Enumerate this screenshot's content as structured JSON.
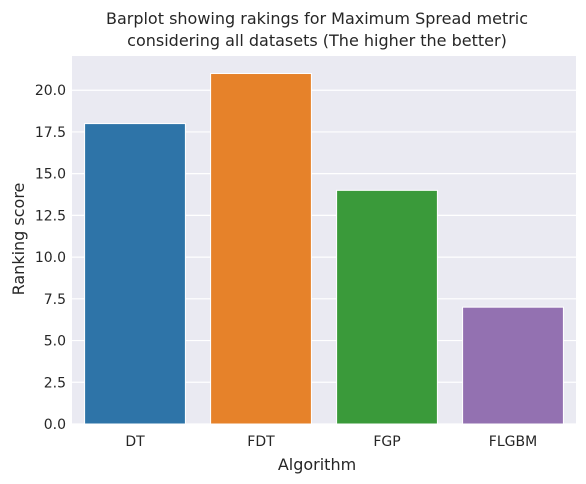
{
  "chart_data": {
    "type": "bar",
    "title_lines": [
      "Barplot showing rakings for Maximum Spread metric",
      "considering all datasets (The higher the better)"
    ],
    "xlabel": "Algorithm",
    "ylabel": "Ranking score",
    "categories": [
      "DT",
      "FDT",
      "FGP",
      "FLGBM"
    ],
    "values": [
      18,
      21,
      14,
      7
    ],
    "colors": [
      "#2e74a8",
      "#e6822a",
      "#3a9a3a",
      "#9371b1"
    ],
    "ylim": [
      0,
      22.05
    ],
    "yticks": [
      0.0,
      2.5,
      5.0,
      7.5,
      10.0,
      12.5,
      15.0,
      17.5,
      20.0
    ],
    "ytick_labels": [
      "0.0",
      "2.5",
      "5.0",
      "7.5",
      "10.0",
      "12.5",
      "15.0",
      "17.5",
      "20.0"
    ],
    "grid": true,
    "background": "#eaeaf2",
    "grid_color": "#ffffff"
  }
}
